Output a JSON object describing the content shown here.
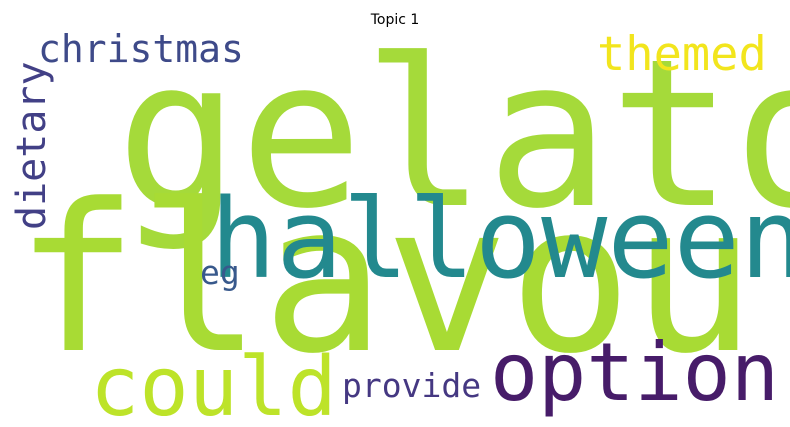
{
  "chart_data": {
    "type": "wordcloud",
    "title": "Topic 1",
    "words": [
      {
        "text": "gelato",
        "color": "#a5da3a"
      },
      {
        "text": "flavour",
        "color": "#a8db34"
      },
      {
        "text": "halloween",
        "color": "#23898e"
      },
      {
        "text": "option",
        "color": "#471c69"
      },
      {
        "text": "could",
        "color": "#bde329"
      },
      {
        "text": "themed",
        "color": "#f2e51d"
      },
      {
        "text": "christmas",
        "color": "#3e4a89"
      },
      {
        "text": "dietary",
        "color": "#424086"
      },
      {
        "text": "provide",
        "color": "#453882"
      },
      {
        "text": "eg",
        "color": "#38598c"
      }
    ]
  }
}
